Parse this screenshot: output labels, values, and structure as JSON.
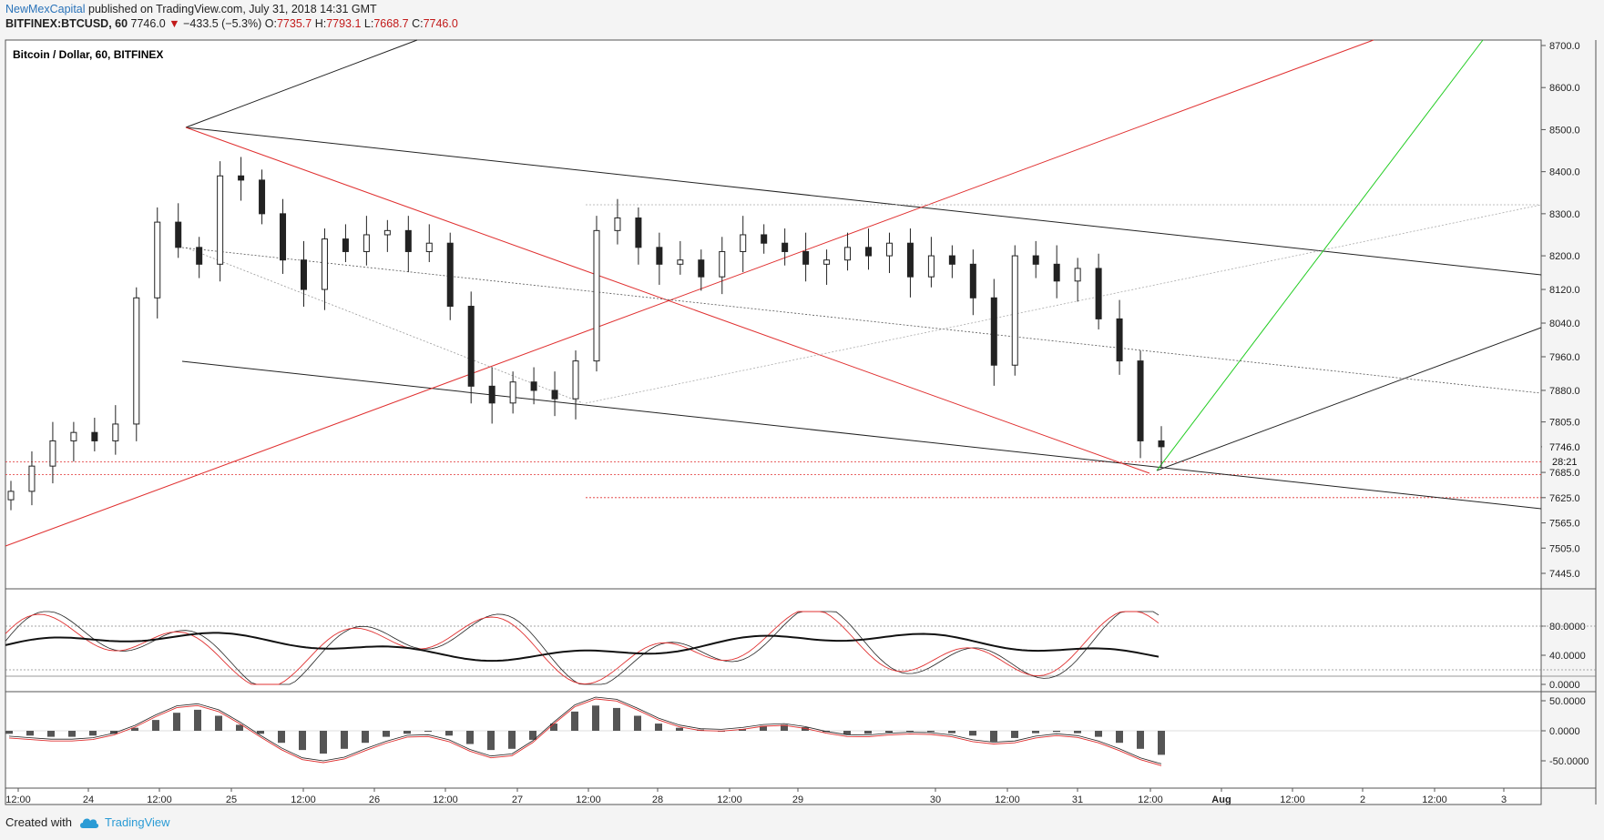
{
  "header": {
    "author": "NewMexCapital",
    "published_text": "published on TradingView.com, July 31, 2018 14:31 GMT",
    "symbol": "BITFINEX:BTCUSD, 60",
    "last": "7746.0",
    "change_arrow": "▼",
    "change": "−433.5 (−5.3%)",
    "o_label": "O:",
    "o_value": "7735.7",
    "h_label": "H:",
    "h_value": "7793.1",
    "l_label": "L:",
    "l_value": "7668.7",
    "c_label": "C:",
    "c_value": "7746.0"
  },
  "footer": {
    "created_with": "Created with",
    "brand": "TradingView",
    "brand_icon": "tradingview-cloud-icon"
  },
  "colors": {
    "up_label": "#1a9a1a",
    "down_label": "#9a1010",
    "accent_red": "#e03030",
    "accent_green": "#22cc22",
    "link_blue": "#2a73b9"
  },
  "chart_data": [
    {
      "type": "candlestick",
      "title": "Bitcoin / Dollar, 60, BITFINEX",
      "y_ticks": [
        "8700.0",
        "8600.0",
        "8500.0",
        "8400.0",
        "8300.0",
        "8200.0",
        "8120.0",
        "8040.0",
        "7960.0",
        "7880.0",
        "7805.0",
        "7746.0",
        "7685.0",
        "7625.0",
        "7565.0",
        "7505.0",
        "7445.0"
      ],
      "y_ticks_value": [
        8700,
        8600,
        8500,
        8400,
        8300,
        8200,
        8120,
        8040,
        7960,
        7880,
        7805,
        7746,
        7685,
        7625,
        7565,
        7505,
        7445
      ],
      "last_price_label": "7746.0",
      "countdown_label": "28:21",
      "x_ticks": [
        "12:00",
        "24",
        "12:00",
        "25",
        "12:00",
        "26",
        "12:00",
        "27",
        "12:00",
        "28",
        "12:00",
        "29",
        "30",
        "12:00",
        "31",
        "12:00",
        "Aug",
        "12:00",
        "2",
        "12:00",
        "3"
      ],
      "approx_closes": [
        7640,
        7700,
        7760,
        7780,
        7760,
        7800,
        8100,
        8280,
        8220,
        8180,
        8390,
        8380,
        8300,
        8190,
        8120,
        8240,
        8210,
        8250,
        8260,
        8210,
        8230,
        8080,
        7890,
        7850,
        7900,
        7880,
        7860,
        7950,
        8260,
        8290,
        8220,
        8180,
        8190,
        8150,
        8210,
        8250,
        8230,
        8210,
        8180,
        8190,
        8220,
        8200,
        8230,
        8150,
        8200,
        8180,
        8100,
        7940,
        8200,
        8180,
        8140,
        8170,
        8050,
        7950,
        7760,
        7746
      ],
      "red_dotted_levels": [
        7710,
        7680,
        7625
      ],
      "grid": false
    },
    {
      "type": "line",
      "title": "",
      "y_ticks": [
        "80.0000",
        "40.0000",
        "0.0000"
      ],
      "y_ticks_value": [
        80,
        40,
        0
      ],
      "levels": [
        80,
        20
      ],
      "series_count": 4
    },
    {
      "type": "bar",
      "title": "",
      "y_ticks": [
        "50.0000",
        "0.0000",
        "-50.0000"
      ],
      "y_ticks_value": [
        50,
        0,
        -50
      ],
      "histogram": [
        -5,
        -8,
        -10,
        -10,
        -8,
        -5,
        5,
        18,
        30,
        35,
        25,
        10,
        -5,
        -20,
        -32,
        -38,
        -30,
        -20,
        -10,
        -5,
        0,
        -8,
        -22,
        -32,
        -30,
        -15,
        12,
        32,
        42,
        38,
        25,
        12,
        5,
        2,
        0,
        3,
        8,
        10,
        6,
        -2,
        -6,
        -5,
        -3,
        0,
        -2,
        -4,
        -8,
        -18,
        -12,
        -4,
        -2,
        -4,
        -10,
        -20,
        -30,
        -40
      ],
      "series_count": 2
    }
  ]
}
